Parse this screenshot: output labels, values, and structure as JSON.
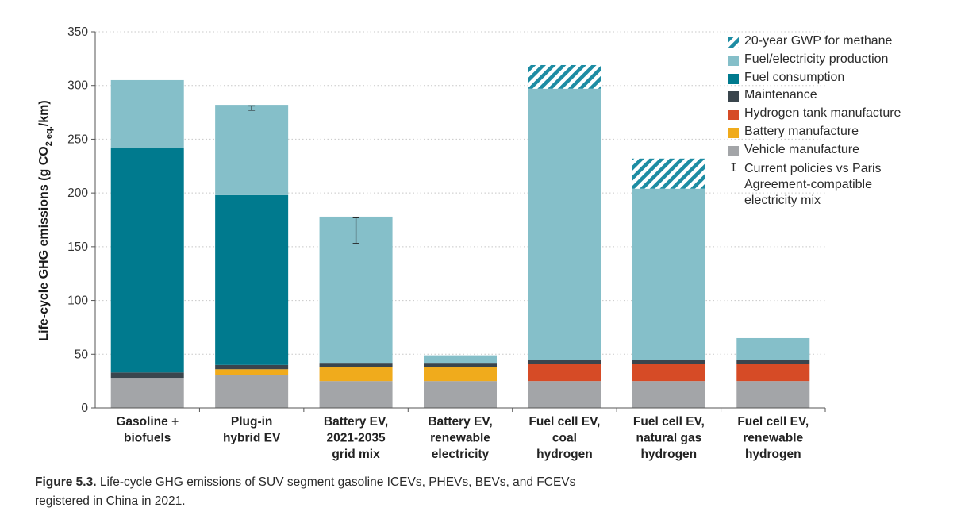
{
  "chart_data": {
    "type": "bar",
    "stacked": true,
    "ylabel": "Life-cycle GHG emissions (g CO",
    "ylabel_sub": "2 eq.",
    "ylabel_tail": "/km)",
    "ylim": [
      0,
      350
    ],
    "yticks": [
      "0",
      "50",
      "100",
      "150",
      "200",
      "250",
      "300",
      "350"
    ],
    "grid": "horizontal-dotted",
    "legend_position": "top-right",
    "categories": [
      [
        "Gasoline +",
        "biofuels"
      ],
      [
        "Plug-in",
        "hybrid EV"
      ],
      [
        "Battery EV,",
        "2021-2035",
        "grid mix"
      ],
      [
        "Battery EV,",
        "renewable",
        "electricity"
      ],
      [
        "Fuel cell EV,",
        "coal",
        "hydrogen"
      ],
      [
        "Fuel cell EV,",
        "natural gas",
        "hydrogen"
      ],
      [
        "Fuel cell EV,",
        "renewable",
        "hydrogen"
      ]
    ],
    "series": [
      {
        "name": "Vehicle manufacture",
        "color": "#a3a5a8",
        "values": [
          28,
          31,
          25,
          25,
          25,
          25,
          25
        ]
      },
      {
        "name": "Battery manufacture",
        "color": "#f0ab1c",
        "values": [
          0,
          5,
          13,
          13,
          0,
          0,
          0
        ]
      },
      {
        "name": "Hydrogen tank manufacture",
        "color": "#d64b26",
        "values": [
          0,
          0,
          0,
          0,
          16,
          16,
          16
        ]
      },
      {
        "name": "Maintenance",
        "color": "#3a454d",
        "values": [
          5,
          4,
          4,
          4,
          4,
          4,
          4
        ]
      },
      {
        "name": "Fuel consumption",
        "color": "#007a8e",
        "values": [
          209,
          158,
          0,
          0,
          0,
          0,
          0
        ]
      },
      {
        "name": "Fuel/electricity production",
        "color": "#85bfc9",
        "values": [
          63,
          84,
          136,
          7,
          252,
          159,
          20
        ]
      },
      {
        "name": "20-year GWP for methane",
        "color": "#1d8ca3",
        "pattern": "hatch",
        "values": [
          0,
          0,
          0,
          0,
          22,
          28,
          0
        ]
      }
    ],
    "error_bars": [
      null,
      {
        "low": 277,
        "high": 281
      },
      {
        "low": 153,
        "high": 177
      },
      null,
      null,
      null,
      null
    ],
    "error_bar_legend": [
      "Current policies vs Paris",
      "Agreement-compatible",
      "electricity mix"
    ]
  },
  "legend": {
    "items": [
      "20-year GWP for methane",
      "Fuel/electricity production",
      "Fuel consumption",
      "Maintenance",
      "Hydrogen tank manufacture",
      "Battery manufacture",
      "Vehicle manufacture"
    ],
    "colors": [
      "#1d8ca3",
      "#85bfc9",
      "#007a8e",
      "#3a454d",
      "#d64b26",
      "#f0ab1c",
      "#a3a5a8"
    ],
    "error_icon": "I",
    "error_lines": [
      "Current policies vs Paris",
      "Agreement-compatible",
      "electricity mix"
    ]
  },
  "caption": {
    "label": "Figure 5.3.",
    "text_line1": " Life-cycle GHG emissions of SUV segment gasoline ICEVs, PHEVs, BEVs, and FCEVs",
    "text_line2": "registered in China in 2021."
  }
}
